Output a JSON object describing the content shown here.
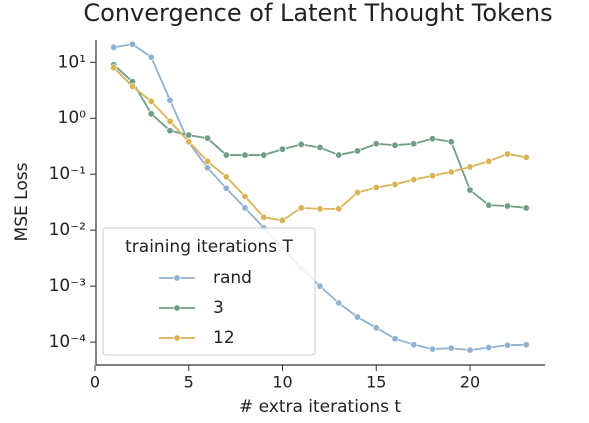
{
  "chart_data": {
    "type": "line",
    "title": "Convergence of Latent Thought Tokens",
    "xlabel": "# extra iterations t",
    "ylabel": "MSE Loss",
    "y_scale": "log",
    "x": [
      1,
      2,
      3,
      4,
      5,
      6,
      7,
      8,
      9,
      10,
      11,
      12,
      13,
      14,
      15,
      16,
      17,
      18,
      19,
      20,
      21,
      22,
      23
    ],
    "series": [
      {
        "name": "rand",
        "color": "#8fb2d0",
        "values": [
          18.5,
          21,
          12.3,
          2.1,
          0.37,
          0.13,
          0.056,
          0.025,
          0.011,
          0.0048,
          0.0021,
          0.001,
          0.0005,
          0.00028,
          0.00018,
          0.000115,
          9e-05,
          7.5e-05,
          7.8e-05,
          7.2e-05,
          8e-05,
          8.8e-05,
          9e-05
        ]
      },
      {
        "name": "3",
        "color": "#6f9e85",
        "values": [
          9,
          4.5,
          1.2,
          0.6,
          0.5,
          0.44,
          0.22,
          0.22,
          0.22,
          0.28,
          0.34,
          0.3,
          0.22,
          0.26,
          0.35,
          0.33,
          0.35,
          0.43,
          0.38,
          0.052,
          0.028,
          0.027,
          0.025
        ]
      },
      {
        "name": "12",
        "color": "#d9b356",
        "values": [
          8,
          3.7,
          2.0,
          0.88,
          0.38,
          0.17,
          0.09,
          0.04,
          0.017,
          0.015,
          0.025,
          0.024,
          0.024,
          0.047,
          0.058,
          0.066,
          0.08,
          0.094,
          0.11,
          0.135,
          0.17,
          0.23,
          0.2
        ]
      }
    ],
    "legend_title": "training iterations T",
    "legend_position": "lower left",
    "xlim": [
      0,
      24
    ],
    "xticks": [
      0,
      5,
      10,
      15,
      20
    ],
    "ylim": [
      3.9e-05,
      25
    ],
    "yticks": [
      {
        "value": 0.0001,
        "label": "10⁻⁴"
      },
      {
        "value": 0.001,
        "label": "10⁻³"
      },
      {
        "value": 0.01,
        "label": "10⁻²"
      },
      {
        "value": 0.1,
        "label": "10⁻¹"
      },
      {
        "value": 1,
        "label": "10⁰"
      },
      {
        "value": 10,
        "label": "10¹"
      }
    ],
    "grid": false
  }
}
